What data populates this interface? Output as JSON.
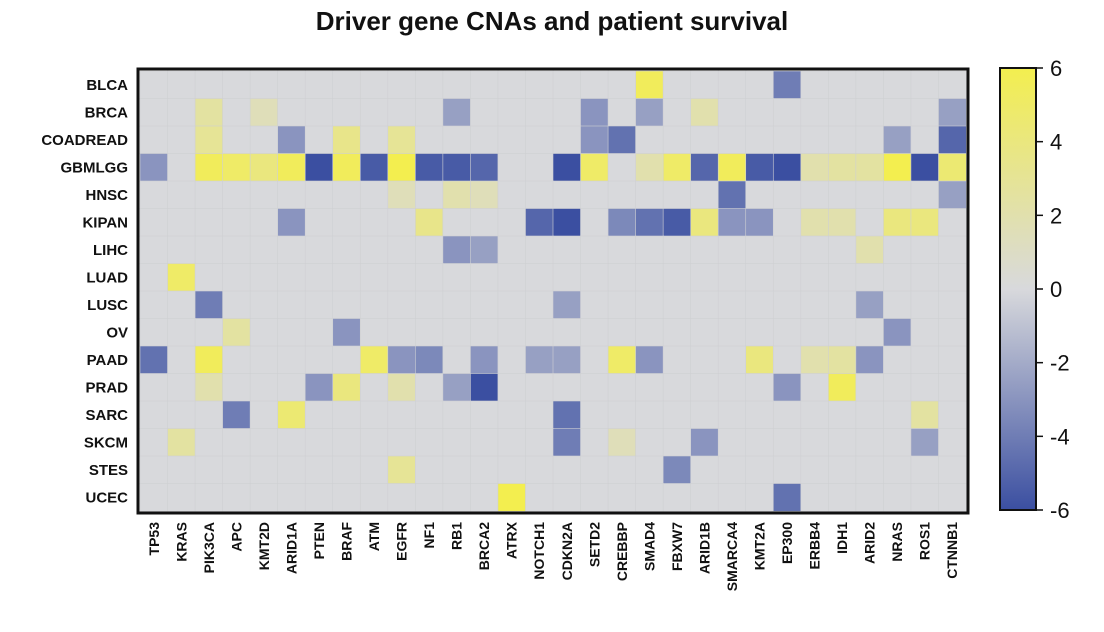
{
  "chart_data": {
    "type": "heatmap",
    "title": "Driver gene CNAs and patient survival",
    "rows": [
      "BLCA",
      "BRCA",
      "COADREAD",
      "GBMLGG",
      "HNSC",
      "KIPAN",
      "LIHC",
      "LUAD",
      "LUSC",
      "OV",
      "PAAD",
      "PRAD",
      "SARC",
      "SKCM",
      "STES",
      "UCEC"
    ],
    "columns": [
      "TP53",
      "KRAS",
      "PIK3CA",
      "APC",
      "KMT2D",
      "ARID1A",
      "PTEN",
      "BRAF",
      "ATM",
      "EGFR",
      "NF1",
      "RB1",
      "BRCA2",
      "ATRX",
      "NOTCH1",
      "CDKN2A",
      "SETD2",
      "CREBBP",
      "SMAD4",
      "FBXW7",
      "ARID1B",
      "SMARCA4",
      "KMT2A",
      "EP300",
      "ERBB4",
      "IDH1",
      "ARID2",
      "NRAS",
      "ROS1",
      "CTNNB1"
    ],
    "values": [
      [
        0,
        0,
        0,
        0,
        0,
        0,
        0,
        0,
        0,
        0,
        0,
        0,
        0,
        0,
        0,
        0,
        0,
        0,
        5.5,
        0,
        0,
        0,
        0,
        -4,
        0,
        0,
        0,
        0,
        0,
        0
      ],
      [
        0,
        0,
        2.5,
        0,
        1.5,
        0,
        0,
        0,
        0,
        0,
        0,
        -2.5,
        0,
        0,
        0,
        0,
        -3,
        0,
        -2.5,
        0,
        2,
        0,
        0,
        0,
        0,
        0,
        0,
        0,
        0,
        -2.5
      ],
      [
        0,
        0,
        3,
        0,
        0,
        -3,
        0,
        3.5,
        0,
        3,
        0,
        0,
        0,
        0,
        0,
        0,
        -3,
        -4.5,
        0,
        0,
        0,
        0,
        0,
        0,
        0,
        0,
        0,
        -2.5,
        0,
        -5
      ],
      [
        -3,
        0,
        5.5,
        5,
        4,
        5.5,
        -6,
        5.5,
        -5.5,
        6,
        -5.5,
        -5.5,
        -5,
        0,
        0,
        -6,
        5,
        0,
        2,
        5,
        -5,
        5.5,
        -5.5,
        -6,
        2,
        2.5,
        2.5,
        6,
        -6,
        4.5
      ],
      [
        0,
        0,
        0,
        0,
        0,
        0,
        0,
        0,
        0,
        1.5,
        0,
        2,
        1.5,
        0,
        0,
        0,
        0,
        0,
        0,
        0,
        0,
        -4.5,
        0,
        0,
        0,
        0,
        0,
        0,
        0,
        -2.5
      ],
      [
        0,
        0,
        0,
        0,
        0,
        -3,
        0,
        0,
        0,
        0,
        3.5,
        0,
        0,
        0,
        -5,
        -6,
        0,
        -3.5,
        -4.5,
        -5.5,
        4,
        -3,
        -3,
        0,
        2,
        2,
        0,
        4,
        4,
        0
      ],
      [
        0,
        0,
        0,
        0,
        0,
        0,
        0,
        0,
        0,
        0,
        0,
        -3,
        -2.5,
        0,
        0,
        0,
        0,
        0,
        0,
        0,
        0,
        0,
        0,
        0,
        0,
        0,
        2,
        0,
        0,
        0
      ],
      [
        0,
        5,
        0,
        0,
        0,
        0,
        0,
        0,
        0,
        0,
        0,
        0,
        0,
        0,
        0,
        0,
        0,
        0,
        0,
        0,
        0,
        0,
        0,
        0,
        0,
        0,
        0,
        0,
        0,
        0
      ],
      [
        0,
        0,
        -4,
        0,
        0,
        0,
        0,
        0,
        0,
        0,
        0,
        0,
        0,
        0,
        0,
        -2.5,
        0,
        0,
        0,
        0,
        0,
        0,
        0,
        0,
        0,
        0,
        -2.5,
        0,
        0,
        0
      ],
      [
        0,
        0,
        0,
        2.5,
        0,
        0,
        0,
        -3,
        0,
        0,
        0,
        0,
        0,
        0,
        0,
        0,
        0,
        0,
        0,
        0,
        0,
        0,
        0,
        0,
        0,
        0,
        0,
        -3,
        0,
        0
      ],
      [
        -4.5,
        0,
        5.5,
        0,
        0,
        0,
        0,
        0,
        5,
        -3,
        -3.5,
        0,
        -3,
        0,
        -2.5,
        -2.5,
        0,
        5,
        -3,
        0,
        0,
        0,
        4,
        0,
        2,
        2.5,
        -3,
        0,
        0,
        0
      ],
      [
        0,
        0,
        2,
        0,
        0,
        0,
        -3,
        4,
        0,
        2,
        0,
        -2.5,
        -6,
        0,
        0,
        0,
        0,
        0,
        0,
        0,
        0,
        0,
        0,
        -3,
        0,
        5.5,
        0,
        0,
        0,
        0
      ],
      [
        0,
        0,
        0,
        -4,
        0,
        4.5,
        0,
        0,
        0,
        0,
        0,
        0,
        0,
        0,
        0,
        -4.5,
        0,
        0,
        0,
        0,
        0,
        0,
        0,
        0,
        0,
        0,
        0,
        0,
        2.5,
        0
      ],
      [
        0,
        2.5,
        0,
        0,
        0,
        0,
        0,
        0,
        0,
        0,
        0,
        0,
        0,
        0,
        0,
        -4,
        0,
        1.5,
        0,
        0,
        -3,
        0,
        0,
        0,
        0,
        0,
        0,
        0,
        -2.5,
        0
      ],
      [
        0,
        0,
        0,
        0,
        0,
        0,
        0,
        0,
        0,
        3,
        0,
        0,
        0,
        0,
        0,
        0,
        0,
        0,
        0,
        -3.5,
        0,
        0,
        0,
        0,
        0,
        0,
        0,
        0,
        0,
        0
      ],
      [
        0,
        0,
        0,
        0,
        0,
        0,
        0,
        0,
        0,
        0,
        0,
        0,
        0,
        6,
        0,
        0,
        0,
        0,
        0,
        0,
        0,
        0,
        0,
        -4.5,
        0,
        0,
        0,
        0,
        0,
        0
      ]
    ],
    "colorbar": {
      "min": -6,
      "max": 6,
      "ticks": [
        "6",
        "4",
        "2",
        "0",
        "-2",
        "-4",
        "-6"
      ]
    },
    "colors": {
      "low": "#3b4fa1",
      "mid": "#d8d9dc",
      "high": "#f3ee4f"
    },
    "legend": "right"
  }
}
